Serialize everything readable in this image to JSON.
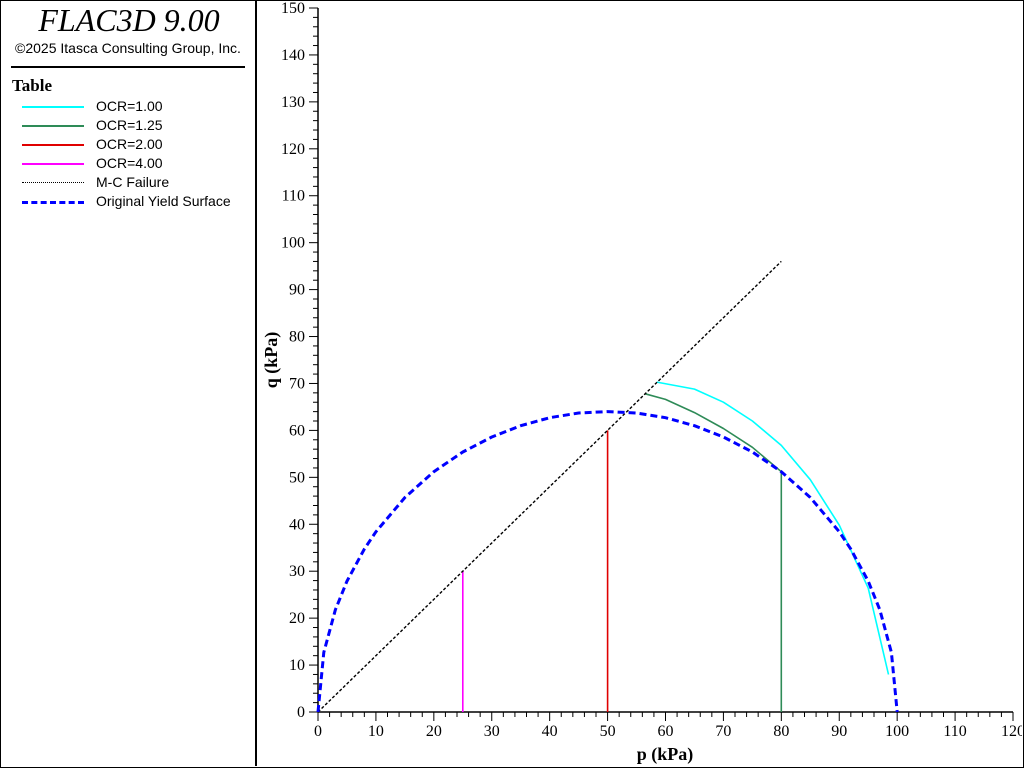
{
  "app": {
    "title": "FLAC3D 9.00",
    "copyright": "©2025 Itasca Consulting Group, Inc."
  },
  "legend": {
    "title": "Table",
    "items": [
      {
        "label": "OCR=1.00",
        "color": "#00ffff",
        "style": "solid"
      },
      {
        "label": "OCR=1.25",
        "color": "#2e8b57",
        "style": "solid"
      },
      {
        "label": "OCR=2.00",
        "color": "#e00000",
        "style": "solid"
      },
      {
        "label": "OCR=4.00",
        "color": "#ff00ff",
        "style": "solid"
      },
      {
        "label": "M-C Failure",
        "color": "#000000",
        "style": "dotted"
      },
      {
        "label": "Original Yield Surface",
        "color": "#0000ff",
        "style": "dashed"
      }
    ]
  },
  "chart_data": {
    "type": "line",
    "xlabel": "p (kPa)",
    "ylabel": "q (kPa)",
    "xlim": [
      0,
      120
    ],
    "ylim": [
      0,
      150
    ],
    "xticks": [
      0,
      10,
      20,
      30,
      40,
      50,
      60,
      70,
      80,
      90,
      100,
      110,
      120
    ],
    "yticks": [
      0,
      10,
      20,
      30,
      40,
      50,
      60,
      70,
      80,
      90,
      100,
      110,
      120,
      130,
      140,
      150
    ],
    "grid": false,
    "legend_position": "left panel",
    "series": [
      {
        "name": "OCR=1.00",
        "color": "#00ffff",
        "style": "solid",
        "x": [
          58.5,
          65,
          70,
          75,
          80,
          85,
          90,
          95,
          98.5
        ],
        "y": [
          70.3,
          68.8,
          66.0,
          62.0,
          56.8,
          49.5,
          39.8,
          26.4,
          8.0
        ]
      },
      {
        "name": "OCR=1.25",
        "color": "#2e8b57",
        "style": "solid",
        "x": [
          56.5,
          60,
          65,
          70,
          75,
          80,
          80
        ],
        "y": [
          67.8,
          66.6,
          63.8,
          60.4,
          56.4,
          51.2,
          0
        ]
      },
      {
        "name": "OCR=2.00",
        "color": "#e00000",
        "style": "solid",
        "x": [
          50,
          50
        ],
        "y": [
          0,
          60
        ]
      },
      {
        "name": "OCR=4.00",
        "color": "#ff00ff",
        "style": "solid",
        "x": [
          25,
          25
        ],
        "y": [
          0,
          30
        ]
      },
      {
        "name": "M-C Failure",
        "color": "#000000",
        "style": "dotted",
        "x": [
          0,
          80
        ],
        "y": [
          0,
          96
        ]
      },
      {
        "name": "Original Yield Surface",
        "color": "#0000ff",
        "style": "dashed",
        "x": [
          0,
          1,
          3,
          5,
          8,
          10,
          15,
          20,
          25,
          30,
          35,
          40,
          45,
          50,
          55,
          60,
          65,
          70,
          75,
          80,
          85,
          90,
          92,
          95,
          97,
          99,
          100
        ],
        "y": [
          0,
          12.7,
          21.8,
          27.9,
          34.7,
          38.4,
          45.7,
          51.2,
          55.4,
          58.6,
          61.0,
          62.7,
          63.7,
          64.0,
          63.7,
          62.7,
          61.0,
          58.6,
          55.4,
          51.2,
          45.7,
          38.4,
          34.7,
          27.9,
          21.8,
          12.7,
          0
        ]
      }
    ]
  }
}
